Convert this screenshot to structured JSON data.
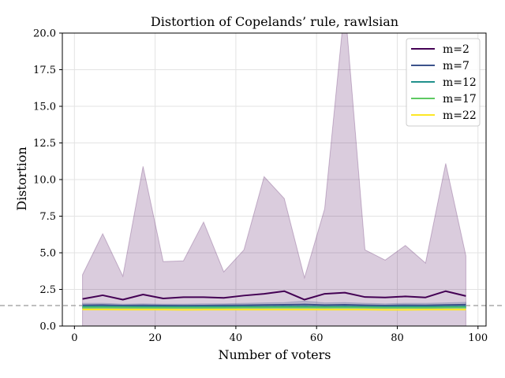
{
  "chart_data": {
    "type": "line",
    "title": "Distortion of Copelands’ rule, rawlsian",
    "xlabel": "Number of voters",
    "ylabel": "Distortion",
    "xlim": [
      -3,
      102
    ],
    "ylim": [
      0,
      20
    ],
    "xticks": [
      0,
      20,
      40,
      60,
      80,
      100
    ],
    "yticks": [
      0.0,
      2.5,
      5.0,
      7.5,
      10.0,
      12.5,
      15.0,
      17.5,
      20.0
    ],
    "xtick_labels": [
      "0",
      "20",
      "40",
      "60",
      "80",
      "100"
    ],
    "ytick_labels": [
      "0.0",
      "2.5",
      "5.0",
      "7.5",
      "10.0",
      "12.5",
      "15.0",
      "17.5",
      "20.0"
    ],
    "grid": true,
    "legend_position": "top-right",
    "reference_line": {
      "y": 1.4,
      "style": "dashed",
      "color": "#aaaaaa"
    },
    "x": [
      2,
      7,
      12,
      17,
      22,
      27,
      32,
      37,
      42,
      47,
      52,
      57,
      62,
      67,
      72,
      77,
      82,
      87,
      92,
      97
    ],
    "series": [
      {
        "name": "m=2",
        "color": "#440154",
        "values": [
          1.85,
          2.1,
          1.8,
          2.15,
          1.88,
          1.97,
          1.97,
          1.92,
          2.08,
          2.2,
          2.38,
          1.8,
          2.2,
          2.28,
          1.98,
          1.95,
          2.02,
          1.95,
          2.38,
          2.05
        ],
        "band_upper": [
          3.5,
          6.3,
          3.4,
          10.9,
          4.4,
          4.45,
          7.1,
          3.7,
          5.2,
          10.2,
          8.7,
          3.3,
          8.0,
          22.0,
          5.2,
          4.5,
          5.5,
          4.3,
          11.1,
          4.8
        ],
        "band_lower": [
          0.0,
          0.0,
          0.0,
          0.0,
          0.0,
          0.0,
          0.0,
          0.0,
          0.0,
          0.0,
          0.0,
          0.0,
          0.0,
          0.0,
          0.0,
          0.0,
          0.0,
          0.0,
          0.0,
          0.0
        ]
      },
      {
        "name": "m=7",
        "color": "#3b528b",
        "values": [
          1.42,
          1.43,
          1.4,
          1.41,
          1.4,
          1.39,
          1.4,
          1.41,
          1.42,
          1.44,
          1.45,
          1.47,
          1.43,
          1.45,
          1.42,
          1.4,
          1.42,
          1.41,
          1.44,
          1.46
        ],
        "band_upper": [
          1.55,
          1.55,
          1.5,
          1.52,
          1.5,
          1.5,
          1.52,
          1.52,
          1.55,
          1.58,
          1.6,
          1.7,
          1.58,
          1.6,
          1.55,
          1.52,
          1.55,
          1.55,
          1.58,
          1.62
        ],
        "band_lower": [
          1.2,
          1.22,
          1.2,
          1.22,
          1.2,
          1.2,
          1.2,
          1.22,
          1.22,
          1.22,
          1.25,
          1.25,
          1.22,
          1.25,
          1.22,
          1.2,
          1.22,
          1.2,
          1.22,
          1.25
        ]
      },
      {
        "name": "m=12",
        "color": "#21918c",
        "values": [
          1.33,
          1.33,
          1.32,
          1.32,
          1.31,
          1.31,
          1.32,
          1.32,
          1.32,
          1.32,
          1.33,
          1.33,
          1.32,
          1.33,
          1.32,
          1.31,
          1.32,
          1.32,
          1.33,
          1.33
        ],
        "band_upper": [
          1.4,
          1.4,
          1.38,
          1.38,
          1.37,
          1.37,
          1.38,
          1.38,
          1.38,
          1.38,
          1.4,
          1.4,
          1.38,
          1.4,
          1.38,
          1.37,
          1.38,
          1.38,
          1.4,
          1.4
        ],
        "band_lower": [
          1.25,
          1.25,
          1.25,
          1.25,
          1.24,
          1.24,
          1.25,
          1.25,
          1.25,
          1.25,
          1.26,
          1.26,
          1.25,
          1.26,
          1.25,
          1.24,
          1.25,
          1.25,
          1.26,
          1.26
        ]
      },
      {
        "name": "m=17",
        "color": "#5ec962",
        "values": [
          1.26,
          1.26,
          1.26,
          1.25,
          1.25,
          1.25,
          1.25,
          1.25,
          1.26,
          1.26,
          1.26,
          1.26,
          1.26,
          1.26,
          1.26,
          1.25,
          1.25,
          1.25,
          1.26,
          1.26
        ],
        "band_upper": [
          1.3,
          1.3,
          1.3,
          1.29,
          1.29,
          1.29,
          1.29,
          1.29,
          1.3,
          1.3,
          1.3,
          1.3,
          1.3,
          1.3,
          1.3,
          1.29,
          1.29,
          1.29,
          1.3,
          1.3
        ],
        "band_lower": [
          1.21,
          1.21,
          1.21,
          1.21,
          1.21,
          1.21,
          1.21,
          1.21,
          1.21,
          1.21,
          1.21,
          1.21,
          1.21,
          1.21,
          1.21,
          1.21,
          1.21,
          1.21,
          1.21,
          1.21
        ]
      },
      {
        "name": "m=22",
        "color": "#fde725",
        "values": [
          1.13,
          1.13,
          1.12,
          1.12,
          1.12,
          1.11,
          1.12,
          1.12,
          1.12,
          1.12,
          1.12,
          1.12,
          1.12,
          1.12,
          1.12,
          1.11,
          1.11,
          1.12,
          1.12,
          1.12
        ],
        "band_upper": [
          1.17,
          1.17,
          1.16,
          1.16,
          1.16,
          1.15,
          1.16,
          1.16,
          1.16,
          1.16,
          1.16,
          1.16,
          1.16,
          1.16,
          1.16,
          1.15,
          1.15,
          1.16,
          1.16,
          1.16
        ],
        "band_lower": [
          1.09,
          1.09,
          1.08,
          1.08,
          1.08,
          1.07,
          1.08,
          1.08,
          1.08,
          1.08,
          1.08,
          1.08,
          1.08,
          1.08,
          1.08,
          1.07,
          1.07,
          1.08,
          1.08,
          1.08
        ]
      }
    ]
  }
}
